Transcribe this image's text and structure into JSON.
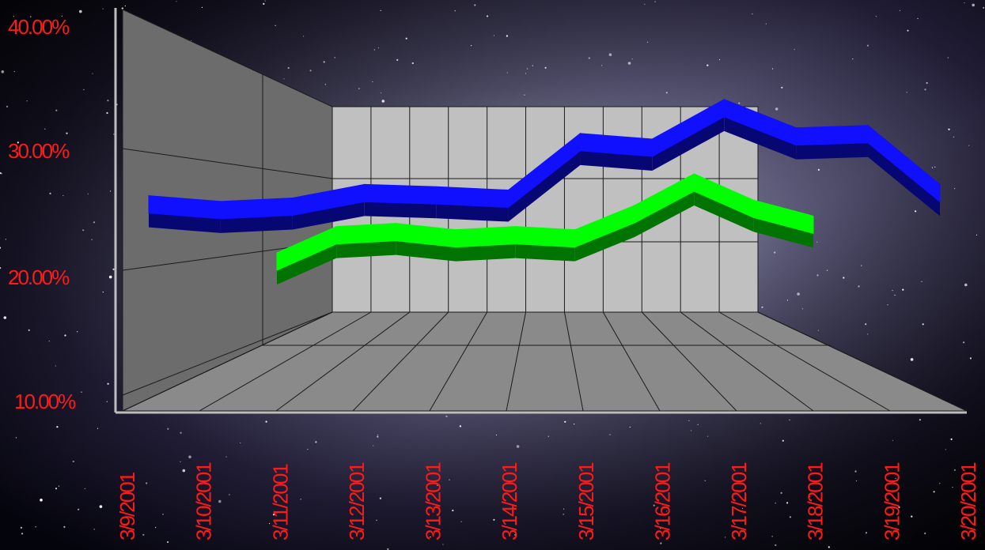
{
  "chart_data": {
    "type": "line",
    "style": "3d-ribbon",
    "x": [
      "3/9/2001",
      "3/10/2001",
      "3/11/2001",
      "3/12/2001",
      "3/13/2001",
      "3/14/2001",
      "3/15/2001",
      "3/16/2001",
      "3/17/2001",
      "3/18/2001",
      "3/19/2001",
      "3/20/2001"
    ],
    "y_ticks": [
      "10.00%",
      "20.00%",
      "30.00%",
      "40.00%"
    ],
    "ylim": [
      10,
      40
    ],
    "y_unit": "%",
    "series": [
      {
        "color": "#1010ff",
        "values": [
          29.0,
          28.5,
          28.8,
          30.0,
          29.8,
          29.5,
          34.5,
          34.0,
          37.5,
          35.0,
          35.2,
          30.0
        ]
      },
      {
        "color": "#00ff00",
        "values": [
          null,
          22.0,
          24.5,
          24.8,
          24.2,
          24.5,
          24.2,
          26.5,
          29.5,
          27.0,
          25.5,
          null
        ]
      }
    ],
    "legend": false,
    "grid": true
  },
  "colors": {
    "axis_text": "#ff1a1a",
    "back_wall": "#c0c0c0",
    "side_wall": "#707070",
    "floor": "#8a8a8a"
  }
}
